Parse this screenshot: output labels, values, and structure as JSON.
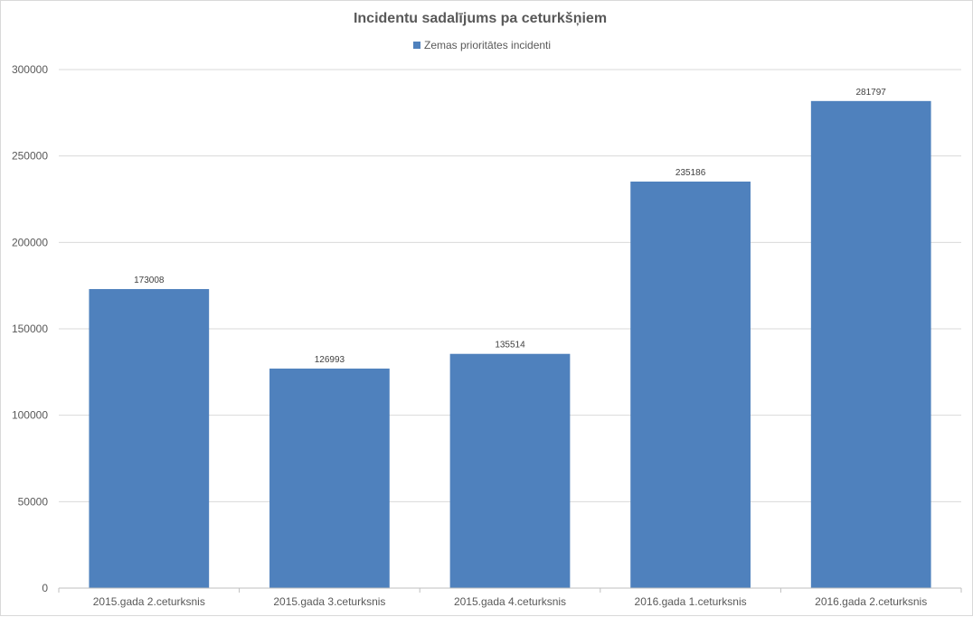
{
  "chart_data": {
    "type": "bar",
    "title": "Incidentu sadalījums pa ceturkšņiem",
    "categories": [
      "2015.gada 2.ceturksnis",
      "2015.gada 3.ceturksnis",
      "2015.gada 4.ceturksnis",
      "2016.gada 1.ceturksnis",
      "2016.gada 2.ceturksnis"
    ],
    "series": [
      {
        "name": "Zemas prioritātes incidenti",
        "color": "#4f81bd",
        "values": [
          173008,
          126993,
          135514,
          235186,
          281797
        ]
      }
    ],
    "ylim": [
      0,
      300000
    ],
    "yticks": [
      0,
      50000,
      100000,
      150000,
      200000,
      250000,
      300000
    ],
    "xlabel": "",
    "ylabel": "",
    "legend": "top",
    "grid": true
  }
}
